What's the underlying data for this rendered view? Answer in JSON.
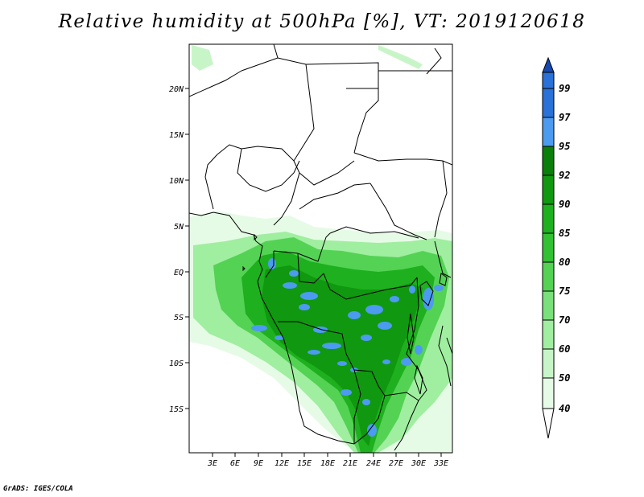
{
  "title": "Relative humidity at 500hPa [%], VT: 2019120618",
  "credit": "GrADS: IGES/COLA",
  "map": {
    "lon_labels": [
      "3E",
      "6E",
      "9E",
      "12E",
      "15E",
      "18E",
      "21E",
      "24E",
      "27E",
      "30E",
      "33E"
    ],
    "lat_labels": [
      "20N",
      "15N",
      "10N",
      "5N",
      "EQ",
      "5S",
      "10S",
      "15S"
    ],
    "lon_range": [
      0,
      34
    ],
    "lat_range": [
      -20,
      24.5
    ]
  },
  "colorbar": {
    "levels": [
      "40",
      "50",
      "60",
      "70",
      "75",
      "80",
      "85",
      "90",
      "92",
      "95",
      "97",
      "99"
    ],
    "colors": [
      "#ffffff",
      "#e6fbe6",
      "#c8f5c8",
      "#a0eea0",
      "#7ae07a",
      "#54d254",
      "#32c132",
      "#1eb01e",
      "#109810",
      "#0a7f0a",
      "#4c9bf0",
      "#2a71d8",
      "#1548b0"
    ]
  },
  "color_scheme": {
    "land_fill": "#ffffff",
    "border_color": "#000000"
  }
}
